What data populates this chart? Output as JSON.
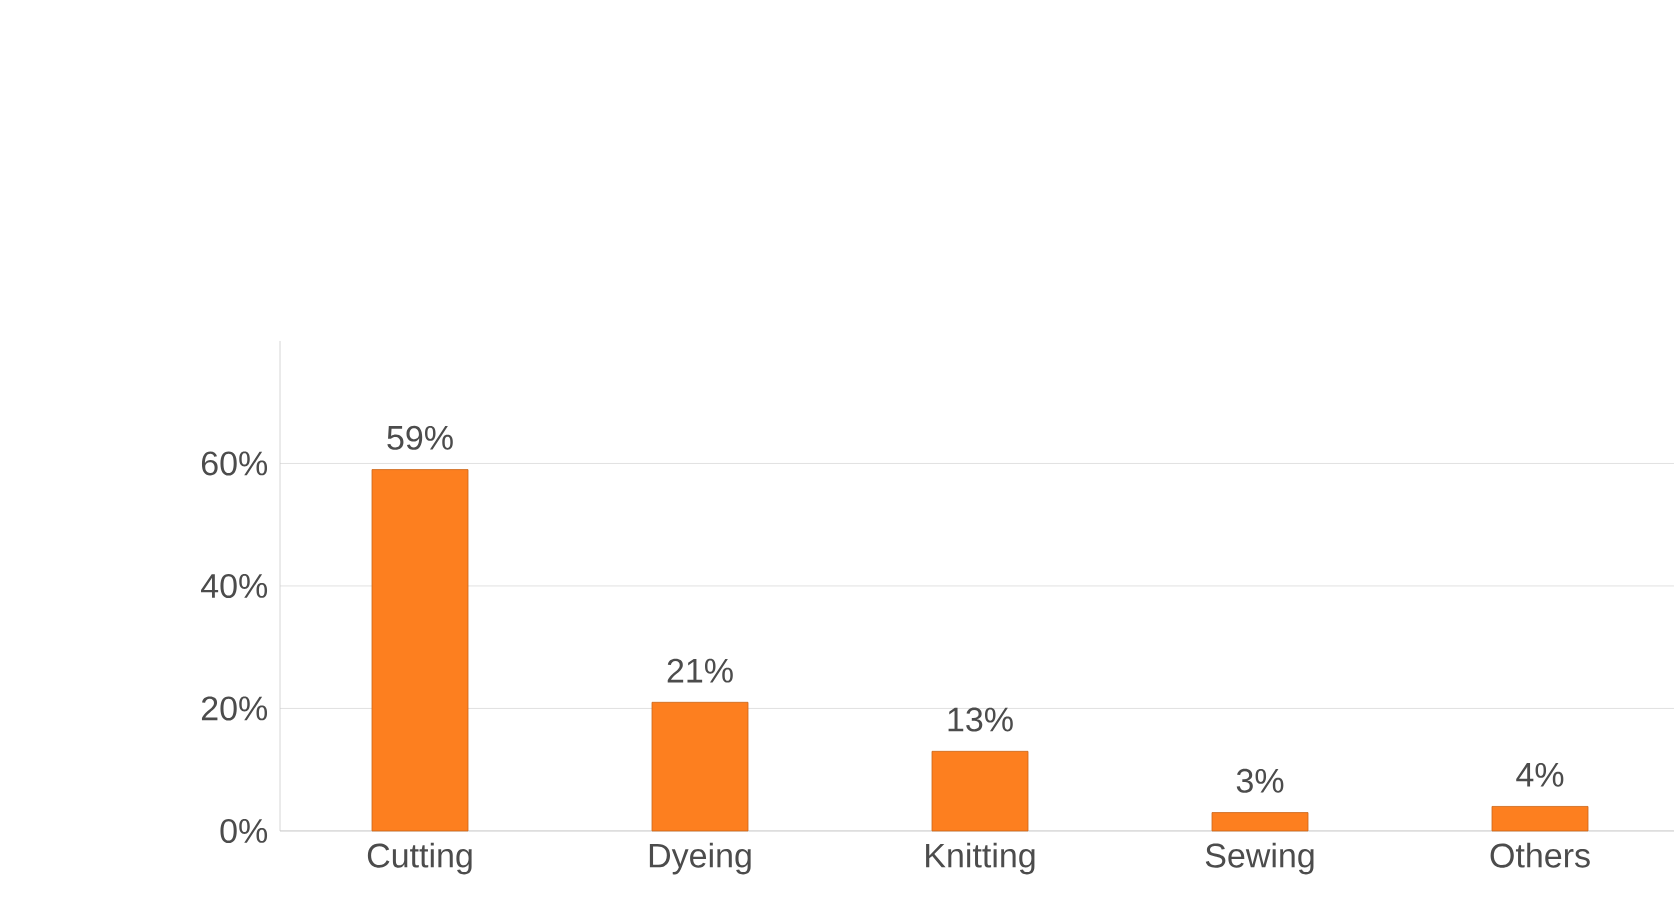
{
  "chart_data": {
    "type": "bar",
    "categories": [
      "Cutting",
      "Dyeing",
      "Knitting",
      "Sewing",
      "Others"
    ],
    "values": [
      59,
      21,
      13,
      3,
      4
    ],
    "value_labels": [
      "59%",
      "21%",
      "13%",
      "3%",
      "4%"
    ],
    "color": "#fd7f1f",
    "ylim": [
      0,
      80
    ],
    "yticks": [
      {
        "value": 0,
        "label": "0%"
      },
      {
        "value": 20,
        "label": "20%"
      },
      {
        "value": 40,
        "label": "40%"
      },
      {
        "value": 60,
        "label": "60%"
      }
    ],
    "grid": true
  }
}
